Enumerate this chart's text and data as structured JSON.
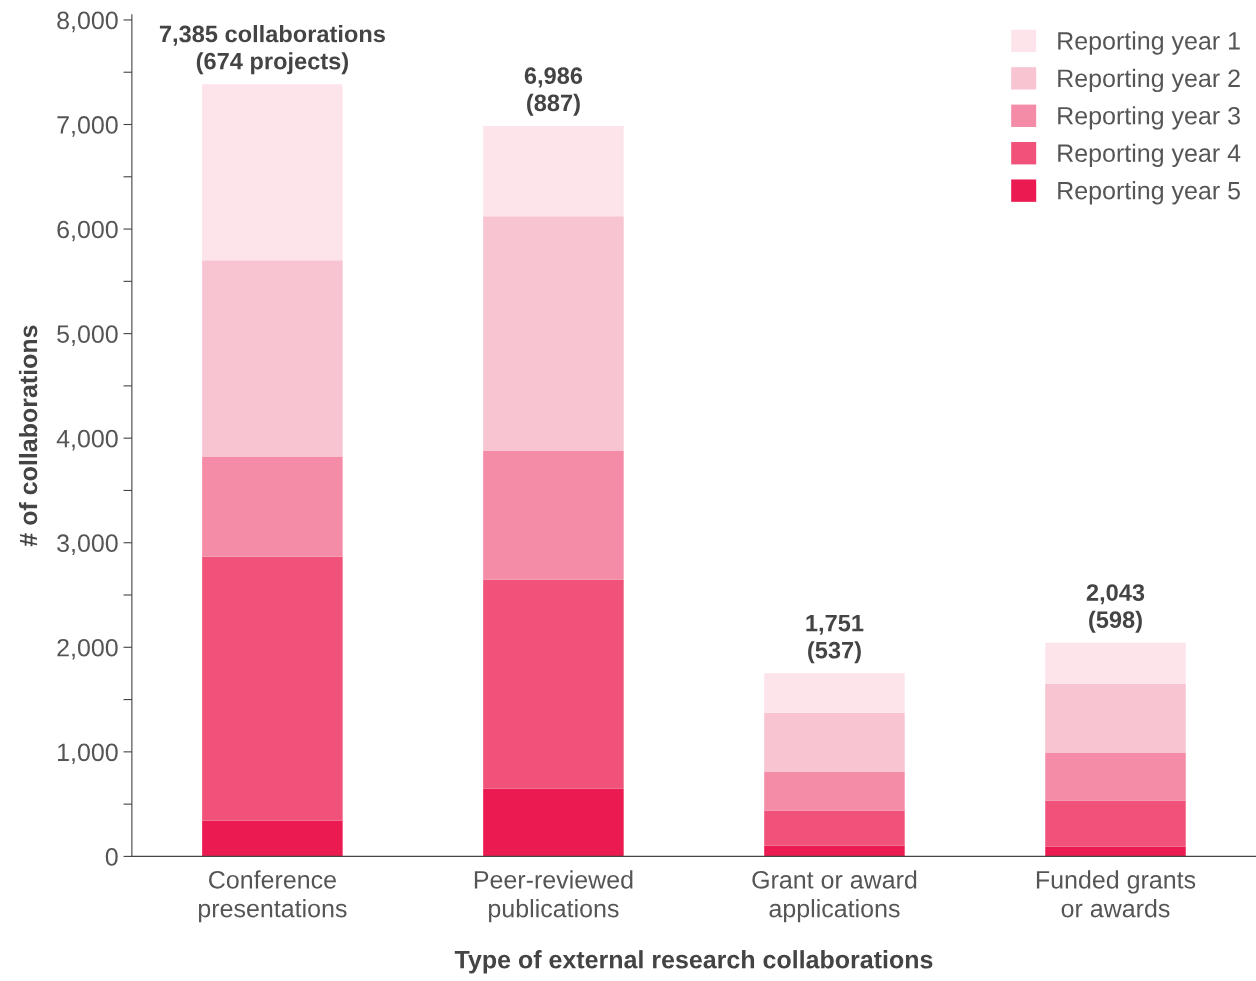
{
  "chart_data": {
    "type": "bar",
    "stacked": true,
    "xlabel": "Type of external research collaborations",
    "ylabel": "# of collaborations",
    "categories": [
      "Conference\npresentations",
      "Peer-reviewed\npublications",
      "Grant or award\napplications",
      "Funded grants\nor awards"
    ],
    "series": [
      {
        "name": "Reporting year 5",
        "color": "#eb1a50",
        "values": [
          344,
          649,
          105,
          96
        ]
      },
      {
        "name": "Reporting year 4",
        "color": "#f0527a",
        "values": [
          2521,
          1996,
          334,
          439
        ]
      },
      {
        "name": "Reporting year 3",
        "color": "#f48ba7",
        "values": [
          955,
          1232,
          372,
          458
        ]
      },
      {
        "name": "Reporting year 2",
        "color": "#f8c4d2",
        "values": [
          1882,
          2245,
          564,
          659
        ]
      },
      {
        "name": "Reporting year 1",
        "color": "#fde4ea",
        "values": [
          1683,
          864,
          376,
          391
        ]
      }
    ],
    "totals": [
      "7,385 collaborations\n(674 projects)",
      "6,986\n(887)",
      "1,751\n(537)",
      "2,043\n(598)"
    ],
    "ylim": [
      0,
      8050
    ],
    "yticks": [
      {
        "value": 0,
        "label": "0"
      },
      {
        "value": 500,
        "label": null
      },
      {
        "value": 1000,
        "label": "1,000"
      },
      {
        "value": 1500,
        "label": null
      },
      {
        "value": 2000,
        "label": "2,000"
      },
      {
        "value": 2500,
        "label": null
      },
      {
        "value": 3000,
        "label": "3,000"
      },
      {
        "value": 3500,
        "label": null
      },
      {
        "value": 4000,
        "label": "4,000"
      },
      {
        "value": 4500,
        "label": null
      },
      {
        "value": 5000,
        "label": "5,000"
      },
      {
        "value": 5500,
        "label": null
      },
      {
        "value": 6000,
        "label": "6,000"
      },
      {
        "value": 6500,
        "label": null
      },
      {
        "value": 7000,
        "label": "7,000"
      },
      {
        "value": 7500,
        "label": null
      },
      {
        "value": 8000,
        "label": "8,000"
      }
    ],
    "grid": false,
    "legend": "top right"
  }
}
